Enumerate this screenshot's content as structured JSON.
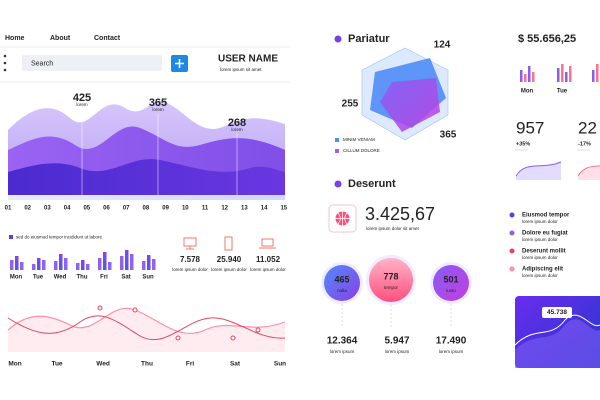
{
  "nav": {
    "links": [
      "Home",
      "About",
      "Contact"
    ],
    "search": "Search",
    "user_name": "USER NAME",
    "user_caption": "lorem ipsum sit amet"
  },
  "area_panel": {
    "peaks": [
      {
        "value": 425,
        "caption": "lorem"
      },
      {
        "value": 365,
        "caption": "lorem"
      },
      {
        "value": 268,
        "caption": "lorem"
      }
    ],
    "x_labels": [
      "01",
      "02",
      "03",
      "04",
      "05",
      "06",
      "07",
      "08",
      "09",
      "10",
      "11",
      "12",
      "13",
      "14",
      "15"
    ]
  },
  "bar_panel": {
    "legend": "sed do eiusmod tempor incididunt ut labore",
    "days": [
      "Mon",
      "Tue",
      "Wed",
      "Thu",
      "Fri",
      "Sat",
      "Sun"
    ]
  },
  "stats": [
    {
      "value": "7.578",
      "caption": "lorem ipsum dolor"
    },
    {
      "value": "25.940",
      "caption": "lorem ipsum dolor"
    },
    {
      "value": "11.052",
      "caption": "lorem ipsum dolor"
    }
  ],
  "line_panel": {
    "days": [
      "Mon",
      "Tue",
      "Wed",
      "Thu",
      "Fri",
      "Sat",
      "Sun"
    ]
  },
  "pariatur": {
    "title": "Pariatur",
    "labels": [
      124,
      255,
      365
    ],
    "legend": [
      "MINIM VENIAM",
      "CILLUM DOLORE"
    ]
  },
  "deserunt": {
    "title": "Deserunt",
    "value": "3.425,67",
    "caption": "lorem ipsum dolor sit amet"
  },
  "circles": [
    {
      "value": 465,
      "label": "nulla"
    },
    {
      "value": 778,
      "label": "tempor"
    },
    {
      "value": 501,
      "label": "iusto"
    }
  ],
  "totals": [
    {
      "value": "12.364",
      "caption": "lorem ipsum"
    },
    {
      "value": "5.947",
      "caption": "lorem ipsum"
    },
    {
      "value": "17.490",
      "caption": "lorem ipsum"
    }
  ],
  "balance": {
    "value": "$ 55.656,25",
    "days": [
      "Mon",
      "Tue"
    ]
  },
  "kpis": [
    {
      "value": 957,
      "change": "+35%"
    },
    {
      "value": 22,
      "change": "-17%"
    }
  ],
  "list": [
    {
      "title": "Eiusmod tempor",
      "caption": "lorem ipsum dolor"
    },
    {
      "title": "Dolore eu fugiat",
      "caption": "lorem ipsum dolor"
    },
    {
      "title": "Deserunt mollit",
      "caption": "lorem ipsum dolor"
    },
    {
      "title": "Adipiscing elit",
      "caption": "lorem ipsum dolor"
    }
  ],
  "card": {
    "value": "45.738"
  }
}
